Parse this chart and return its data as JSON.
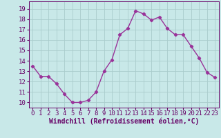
{
  "x": [
    0,
    1,
    2,
    3,
    4,
    5,
    6,
    7,
    8,
    9,
    10,
    11,
    12,
    13,
    14,
    15,
    16,
    17,
    18,
    19,
    20,
    21,
    22,
    23
  ],
  "y": [
    13.5,
    12.5,
    12.5,
    11.8,
    10.8,
    10.0,
    10.0,
    10.2,
    11.0,
    13.0,
    14.1,
    16.5,
    17.1,
    18.8,
    18.5,
    17.9,
    18.2,
    17.1,
    16.5,
    16.5,
    15.4,
    14.3,
    12.9,
    12.4
  ],
  "line_color": "#993399",
  "marker": "D",
  "marker_size": 2.2,
  "linewidth": 1.0,
  "bg_color": "#c8e8e8",
  "grid_color": "#aacccc",
  "xlabel": "Windchill (Refroidissement éolien,°C)",
  "xlabel_color": "#660066",
  "tick_color": "#660066",
  "yticks": [
    10,
    11,
    12,
    13,
    14,
    15,
    16,
    17,
    18,
    19
  ],
  "ylim": [
    9.5,
    19.7
  ],
  "xlim": [
    -0.5,
    23.5
  ],
  "xticks": [
    0,
    1,
    2,
    3,
    4,
    5,
    6,
    7,
    8,
    9,
    10,
    11,
    12,
    13,
    14,
    15,
    16,
    17,
    18,
    19,
    20,
    21,
    22,
    23
  ],
  "font_size": 6.5,
  "xlabel_fontsize": 7.0
}
